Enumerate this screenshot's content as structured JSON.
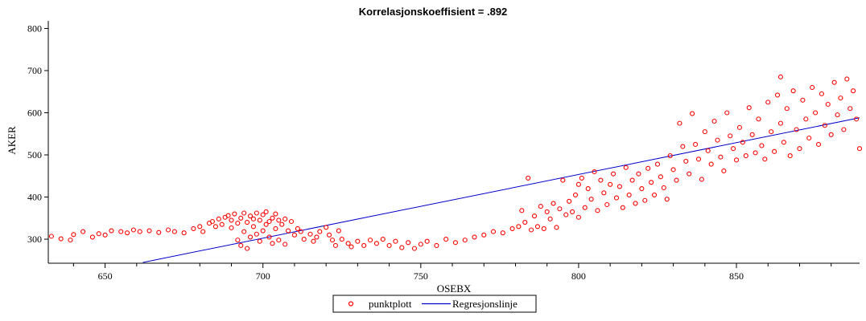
{
  "chart_data": {
    "type": "scatter",
    "title": "Korrelasjonskoeffisient =  .892",
    "xlabel": "OSEBX",
    "ylabel": "AKER",
    "xlim": [
      632,
      889
    ],
    "ylim": [
      243,
      818
    ],
    "x_ticks": [
      650,
      700,
      750,
      800,
      850
    ],
    "y_ticks": [
      300,
      400,
      500,
      600,
      700,
      800
    ],
    "x_minor_step": 10,
    "grid": false,
    "legend_position": "bottom-center",
    "colors": {
      "points": "#ff0000",
      "regression": "#0000cc",
      "axis": "#000000"
    },
    "series": [
      {
        "name": "punktplott",
        "marker": "circle",
        "points": [
          [
            633,
            307
          ],
          [
            636,
            301
          ],
          [
            639,
            298
          ],
          [
            640,
            311
          ],
          [
            643,
            318
          ],
          [
            646,
            305
          ],
          [
            648,
            313
          ],
          [
            650,
            310
          ],
          [
            652,
            320
          ],
          [
            655,
            318
          ],
          [
            657,
            315
          ],
          [
            659,
            322
          ],
          [
            661,
            318
          ],
          [
            664,
            320
          ],
          [
            667,
            316
          ],
          [
            670,
            322
          ],
          [
            672,
            318
          ],
          [
            675,
            315
          ],
          [
            678,
            325
          ],
          [
            680,
            330
          ],
          [
            681,
            318
          ],
          [
            683,
            338
          ],
          [
            684,
            342
          ],
          [
            685,
            330
          ],
          [
            686,
            348
          ],
          [
            687,
            335
          ],
          [
            688,
            352
          ],
          [
            689,
            356
          ],
          [
            690,
            345
          ],
          [
            690,
            327
          ],
          [
            691,
            360
          ],
          [
            692,
            338
          ],
          [
            692,
            298
          ],
          [
            693,
            350
          ],
          [
            693,
            285
          ],
          [
            694,
            362
          ],
          [
            694,
            318
          ],
          [
            695,
            340
          ],
          [
            695,
            278
          ],
          [
            696,
            355
          ],
          [
            696,
            305
          ],
          [
            697,
            348
          ],
          [
            697,
            330
          ],
          [
            698,
            362
          ],
          [
            698,
            312
          ],
          [
            699,
            345
          ],
          [
            699,
            295
          ],
          [
            700,
            358
          ],
          [
            700,
            320
          ],
          [
            701,
            365
          ],
          [
            701,
            335
          ],
          [
            702,
            342
          ],
          [
            702,
            305
          ],
          [
            703,
            350
          ],
          [
            703,
            290
          ],
          [
            704,
            360
          ],
          [
            704,
            325
          ],
          [
            705,
            345
          ],
          [
            705,
            298
          ],
          [
            706,
            335
          ],
          [
            707,
            348
          ],
          [
            707,
            288
          ],
          [
            708,
            320
          ],
          [
            709,
            342
          ],
          [
            710,
            310
          ],
          [
            711,
            325
          ],
          [
            712,
            318
          ],
          [
            713,
            300
          ],
          [
            715,
            312
          ],
          [
            716,
            295
          ],
          [
            717,
            305
          ],
          [
            718,
            318
          ],
          [
            720,
            328
          ],
          [
            721,
            310
          ],
          [
            722,
            298
          ],
          [
            723,
            285
          ],
          [
            724,
            320
          ],
          [
            725,
            300
          ],
          [
            727,
            290
          ],
          [
            728,
            282
          ],
          [
            730,
            295
          ],
          [
            732,
            285
          ],
          [
            734,
            298
          ],
          [
            736,
            290
          ],
          [
            738,
            300
          ],
          [
            740,
            285
          ],
          [
            742,
            295
          ],
          [
            744,
            280
          ],
          [
            746,
            292
          ],
          [
            748,
            278
          ],
          [
            750,
            288
          ],
          [
            752,
            295
          ],
          [
            755,
            285
          ],
          [
            758,
            300
          ],
          [
            761,
            292
          ],
          [
            764,
            298
          ],
          [
            767,
            305
          ],
          [
            770,
            310
          ],
          [
            773,
            318
          ],
          [
            776,
            315
          ],
          [
            779,
            325
          ],
          [
            781,
            330
          ],
          [
            782,
            368
          ],
          [
            783,
            340
          ],
          [
            784,
            445
          ],
          [
            785,
            322
          ],
          [
            786,
            355
          ],
          [
            787,
            330
          ],
          [
            788,
            378
          ],
          [
            789,
            325
          ],
          [
            790,
            365
          ],
          [
            791,
            348
          ],
          [
            792,
            385
          ],
          [
            793,
            328
          ],
          [
            794,
            372
          ],
          [
            795,
            440
          ],
          [
            796,
            358
          ],
          [
            797,
            390
          ],
          [
            798,
            365
          ],
          [
            799,
            405
          ],
          [
            800,
            430
          ],
          [
            800,
            352
          ],
          [
            801,
            445
          ],
          [
            802,
            375
          ],
          [
            803,
            420
          ],
          [
            804,
            395
          ],
          [
            805,
            460
          ],
          [
            806,
            368
          ],
          [
            807,
            440
          ],
          [
            808,
            410
          ],
          [
            809,
            382
          ],
          [
            810,
            430
          ],
          [
            811,
            455
          ],
          [
            812,
            398
          ],
          [
            813,
            425
          ],
          [
            814,
            375
          ],
          [
            815,
            470
          ],
          [
            816,
            405
          ],
          [
            817,
            440
          ],
          [
            818,
            385
          ],
          [
            819,
            455
          ],
          [
            820,
            420
          ],
          [
            821,
            392
          ],
          [
            822,
            468
          ],
          [
            823,
            435
          ],
          [
            824,
            405
          ],
          [
            825,
            478
          ],
          [
            826,
            448
          ],
          [
            827,
            422
          ],
          [
            828,
            395
          ],
          [
            829,
            498
          ],
          [
            830,
            465
          ],
          [
            831,
            440
          ],
          [
            832,
            575
          ],
          [
            833,
            520
          ],
          [
            834,
            485
          ],
          [
            835,
            455
          ],
          [
            836,
            598
          ],
          [
            837,
            525
          ],
          [
            838,
            490
          ],
          [
            839,
            442
          ],
          [
            840,
            555
          ],
          [
            841,
            510
          ],
          [
            842,
            478
          ],
          [
            843,
            580
          ],
          [
            844,
            535
          ],
          [
            845,
            495
          ],
          [
            846,
            462
          ],
          [
            847,
            600
          ],
          [
            848,
            545
          ],
          [
            849,
            515
          ],
          [
            850,
            488
          ],
          [
            851,
            565
          ],
          [
            852,
            530
          ],
          [
            853,
            498
          ],
          [
            854,
            612
          ],
          [
            855,
            548
          ],
          [
            856,
            505
          ],
          [
            857,
            585
          ],
          [
            858,
            522
          ],
          [
            859,
            490
          ],
          [
            860,
            625
          ],
          [
            861,
            555
          ],
          [
            862,
            508
          ],
          [
            863,
            642
          ],
          [
            864,
            575
          ],
          [
            864,
            685
          ],
          [
            865,
            530
          ],
          [
            866,
            610
          ],
          [
            867,
            498
          ],
          [
            868,
            652
          ],
          [
            869,
            560
          ],
          [
            870,
            515
          ],
          [
            871,
            630
          ],
          [
            872,
            585
          ],
          [
            873,
            540
          ],
          [
            874,
            660
          ],
          [
            875,
            600
          ],
          [
            876,
            525
          ],
          [
            877,
            645
          ],
          [
            878,
            570
          ],
          [
            879,
            620
          ],
          [
            880,
            548
          ],
          [
            881,
            672
          ],
          [
            882,
            595
          ],
          [
            883,
            635
          ],
          [
            884,
            560
          ],
          [
            885,
            680
          ],
          [
            886,
            610
          ],
          [
            887,
            652
          ],
          [
            888,
            585
          ],
          [
            889,
            515
          ]
        ]
      },
      {
        "name": "Regresjonslinje",
        "type": "line",
        "points": [
          [
            662,
            245
          ],
          [
            889,
            588
          ]
        ]
      }
    ]
  }
}
